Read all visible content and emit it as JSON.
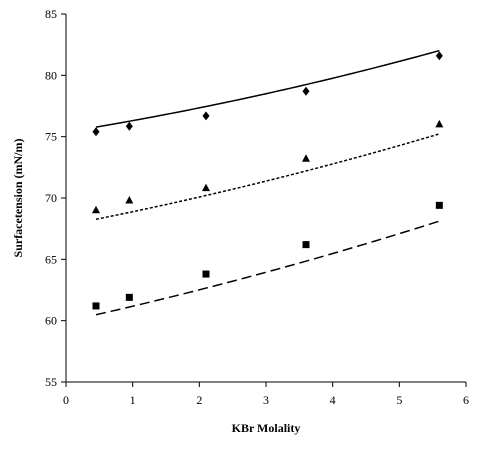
{
  "chart_data": {
    "type": "scatter",
    "xlabel": "KBr Molality",
    "ylabel": "Surfacetension (mN/m)",
    "xlim": [
      0,
      6
    ],
    "ylim": [
      55,
      85
    ],
    "xticks": [
      0,
      1,
      2,
      3,
      4,
      5,
      6
    ],
    "yticks": [
      55,
      60,
      65,
      70,
      75,
      80,
      85
    ],
    "grid": false,
    "legend": "none",
    "series": [
      {
        "marker": "diamond",
        "color": "#000000",
        "points": [
          [
            0.45,
            75.4
          ],
          [
            0.95,
            75.85
          ],
          [
            2.1,
            76.7
          ],
          [
            3.6,
            78.7
          ],
          [
            5.6,
            81.6
          ]
        ]
      },
      {
        "marker": "triangle",
        "color": "#000000",
        "points": [
          [
            0.45,
            69.0
          ],
          [
            0.95,
            69.8
          ],
          [
            2.1,
            70.8
          ],
          [
            3.6,
            73.2
          ],
          [
            5.6,
            76.0
          ]
        ]
      },
      {
        "marker": "square",
        "color": "#000000",
        "points": [
          [
            0.45,
            61.2
          ],
          [
            0.95,
            61.9
          ],
          [
            2.1,
            63.8
          ],
          [
            3.6,
            66.2
          ],
          [
            5.6,
            69.4
          ]
        ]
      }
    ],
    "fitted_lines": [
      {
        "style": "solid",
        "color": "#000000",
        "points": [
          [
            0.45,
            75.8
          ],
          [
            2.1,
            77.4
          ],
          [
            3.6,
            79.3
          ],
          [
            5.6,
            82.0
          ]
        ]
      },
      {
        "style": "dotted",
        "color": "#000000",
        "points": [
          [
            0.45,
            68.3
          ],
          [
            2.1,
            70.1
          ],
          [
            3.6,
            72.3
          ],
          [
            5.6,
            75.2
          ]
        ]
      },
      {
        "style": "dashed",
        "color": "#000000",
        "points": [
          [
            0.45,
            60.5
          ],
          [
            2.1,
            62.6
          ],
          [
            3.6,
            64.9
          ],
          [
            5.6,
            68.1
          ]
        ]
      }
    ]
  }
}
